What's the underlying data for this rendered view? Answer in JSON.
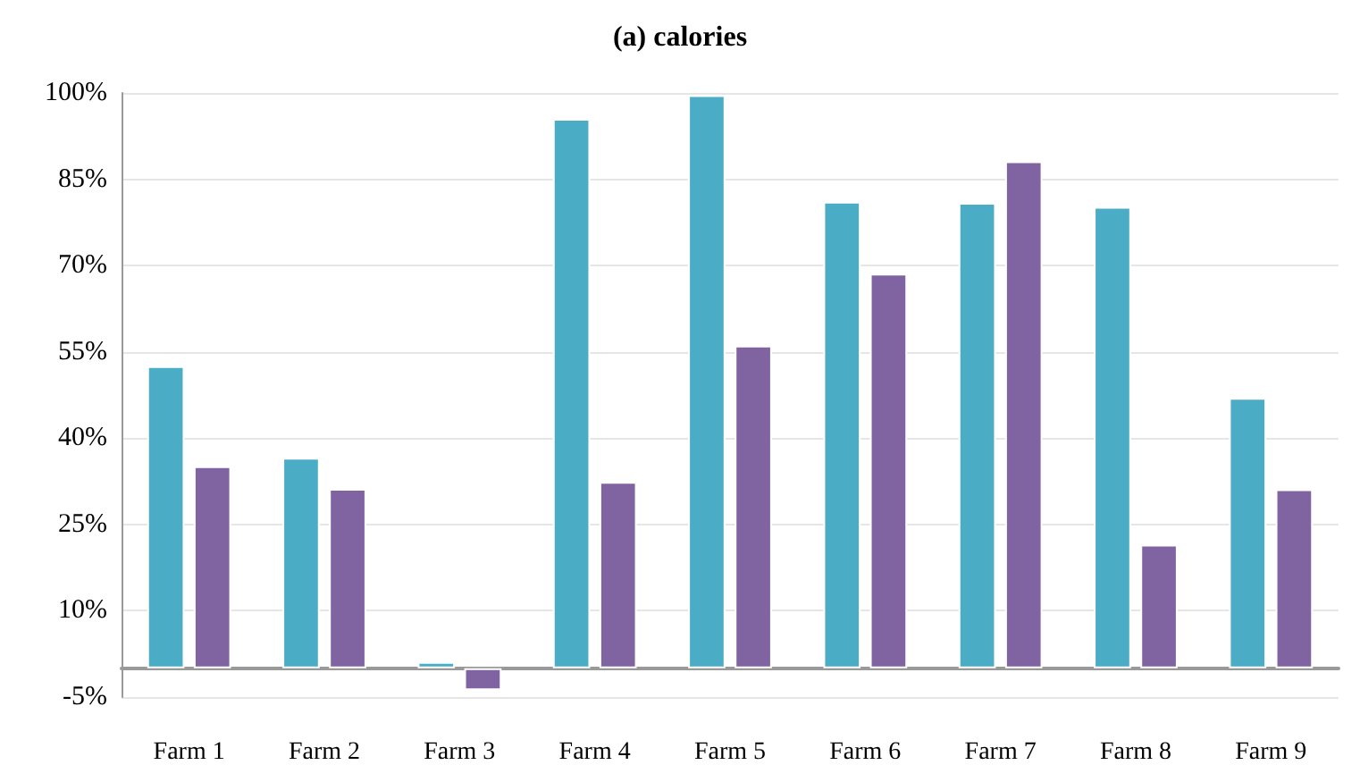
{
  "chart_data": {
    "type": "bar",
    "title": "(a) calories",
    "categories": [
      "Farm 1",
      "Farm 2",
      "Farm 3",
      "Farm 4",
      "Farm 5",
      "Farm 6",
      "Farm 7",
      "Farm 8",
      "Farm 9"
    ],
    "series": [
      {
        "color": "#4bacc6",
        "values": [
          52.5,
          36.6,
          1.1,
          95.5,
          99.6,
          81.1,
          80.9,
          80.2,
          47.0
        ]
      },
      {
        "color": "#8064a2",
        "values": [
          35.1,
          31.2,
          -3.8,
          32.4,
          56.1,
          68.6,
          88.1,
          21.5,
          31.1
        ]
      }
    ],
    "ylim": [
      -5,
      100
    ],
    "yticks": [
      {
        "value": -5,
        "label": "-5%"
      },
      {
        "value": 10,
        "label": "10%"
      },
      {
        "value": 25,
        "label": "25%"
      },
      {
        "value": 40,
        "label": "40%"
      },
      {
        "value": 55,
        "label": "55%"
      },
      {
        "value": 70,
        "label": "70%"
      },
      {
        "value": 85,
        "label": "85%"
      },
      {
        "value": 100,
        "label": "100%"
      }
    ],
    "grid": "y"
  }
}
